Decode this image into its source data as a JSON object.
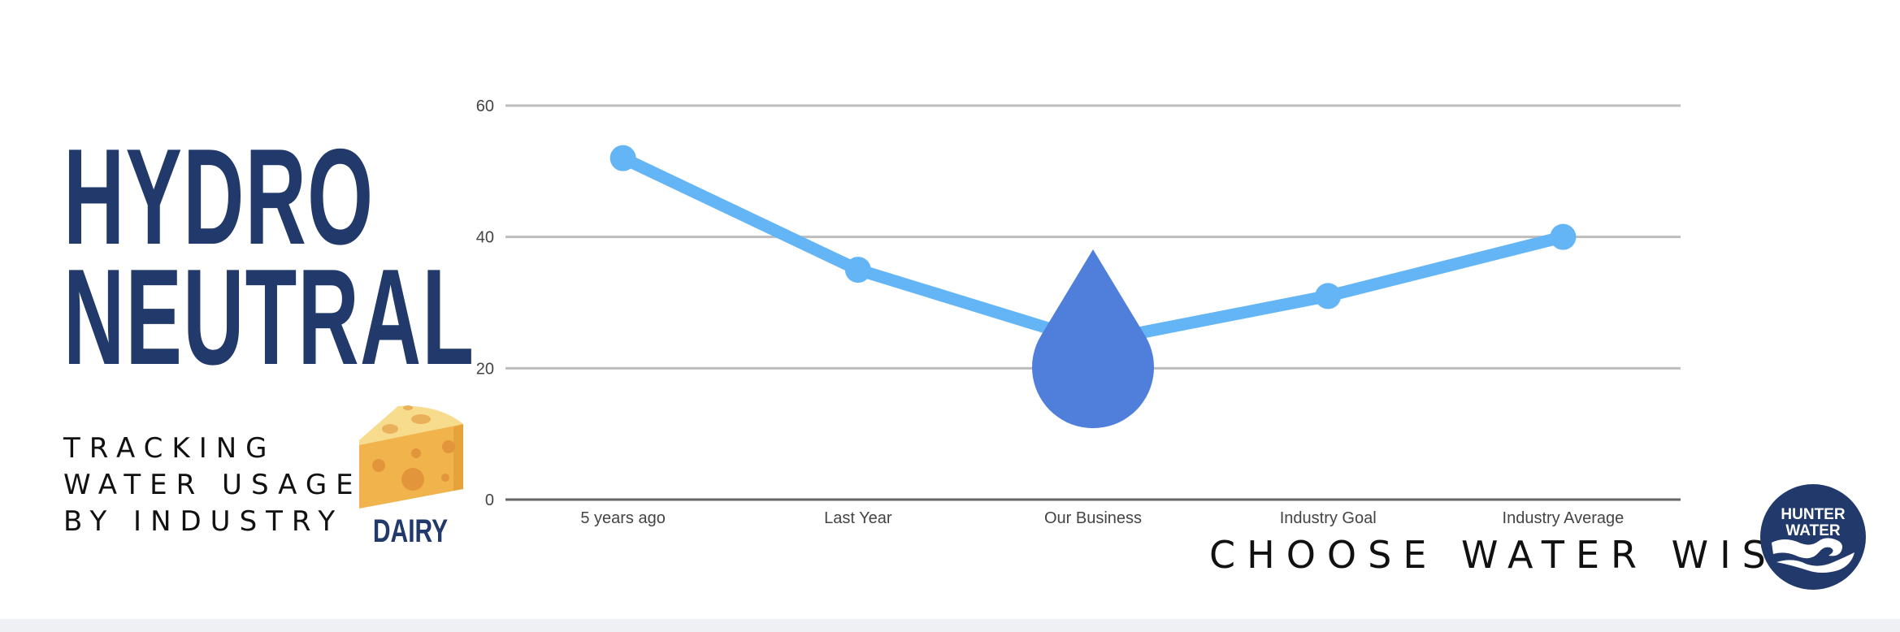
{
  "title": {
    "line1": "HYDRO",
    "line2": "NEUTRAL"
  },
  "subtitle": {
    "line1": "TRACKING",
    "line2": "WATER USAGE",
    "line3": "BY INDUSTRY"
  },
  "industry": {
    "label": "DAIRY",
    "icon": "cheese-icon"
  },
  "slogan": "CHOOSE WATER WISE",
  "logo": {
    "line1": "HUNTER",
    "line2": "WATER"
  },
  "colors": {
    "title": "#22396b",
    "line": "#64b5f6",
    "drop": "#4f7fdb",
    "grid": "#bdbdbd",
    "axis": "#666666",
    "logo": "#22396b"
  },
  "chart_data": {
    "type": "line",
    "categories": [
      "5 years ago",
      "Last Year",
      "Our Business",
      "Industry Goal",
      "Industry Average"
    ],
    "series": [
      {
        "values": [
          52,
          35,
          24,
          31,
          40
        ]
      }
    ],
    "ylim": [
      0,
      60
    ],
    "yticks": [
      "0",
      "20",
      "40",
      "60"
    ],
    "grid": true,
    "highlight": {
      "category": "Our Business",
      "marker": "water-drop-icon"
    }
  }
}
